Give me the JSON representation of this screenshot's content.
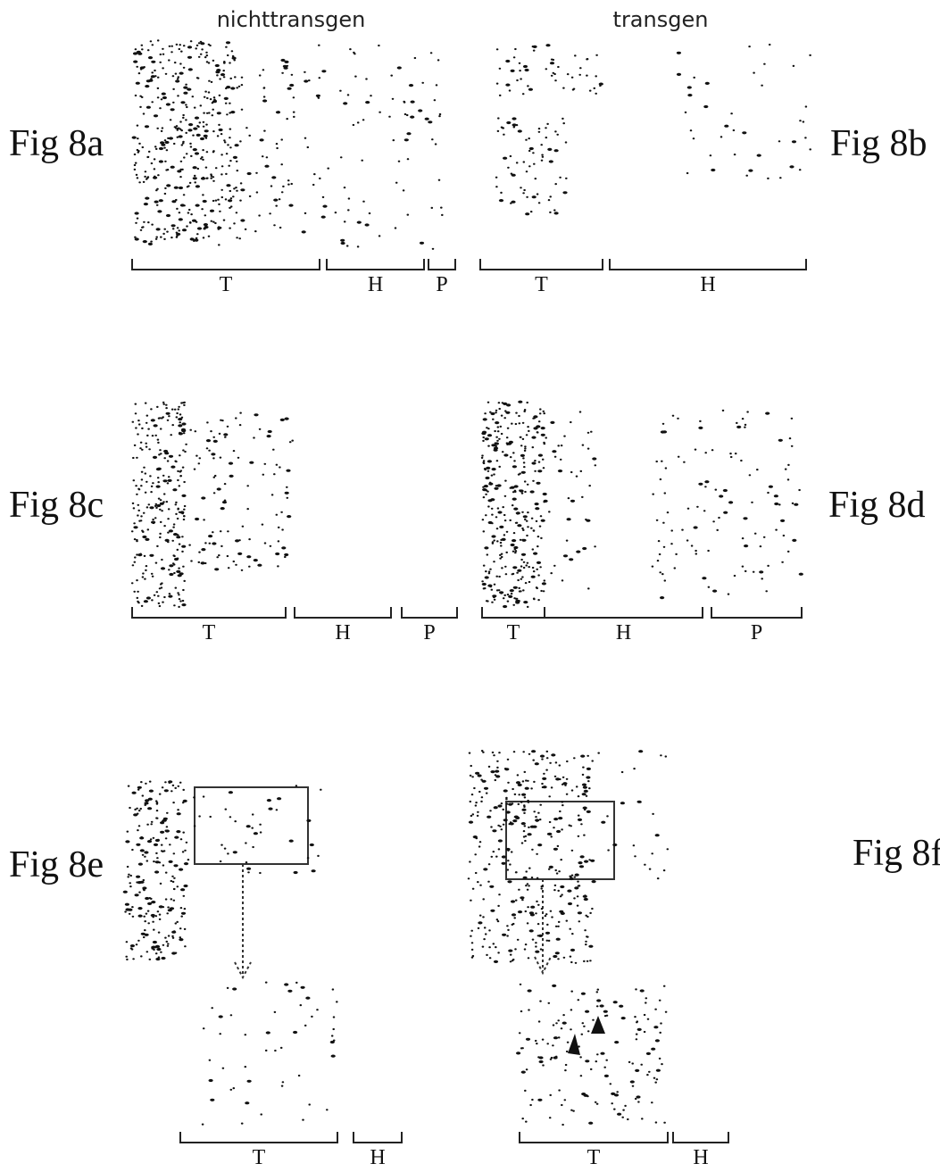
{
  "header": {
    "left": "nichttransgen",
    "right": "transgen"
  },
  "figures": [
    {
      "label": "Fig 8a",
      "brackets": [
        {
          "label": "T"
        },
        {
          "label": "H"
        },
        {
          "label": "P"
        }
      ]
    },
    {
      "label": "Fig 8b",
      "brackets": [
        {
          "label": "T"
        },
        {
          "label": "H"
        }
      ]
    },
    {
      "label": "Fig 8c",
      "brackets": [
        {
          "label": "T"
        },
        {
          "label": "H"
        },
        {
          "label": "P"
        }
      ]
    },
    {
      "label": "Fig 8d",
      "brackets": [
        {
          "label": "T"
        },
        {
          "label": "H"
        },
        {
          "label": "P"
        }
      ]
    },
    {
      "label": "Fig 8e",
      "brackets": [
        {
          "label": "T"
        },
        {
          "label": "H"
        }
      ]
    },
    {
      "label": "Fig 8f",
      "brackets": [
        {
          "label": "T"
        },
        {
          "label": "H"
        }
      ]
    }
  ]
}
